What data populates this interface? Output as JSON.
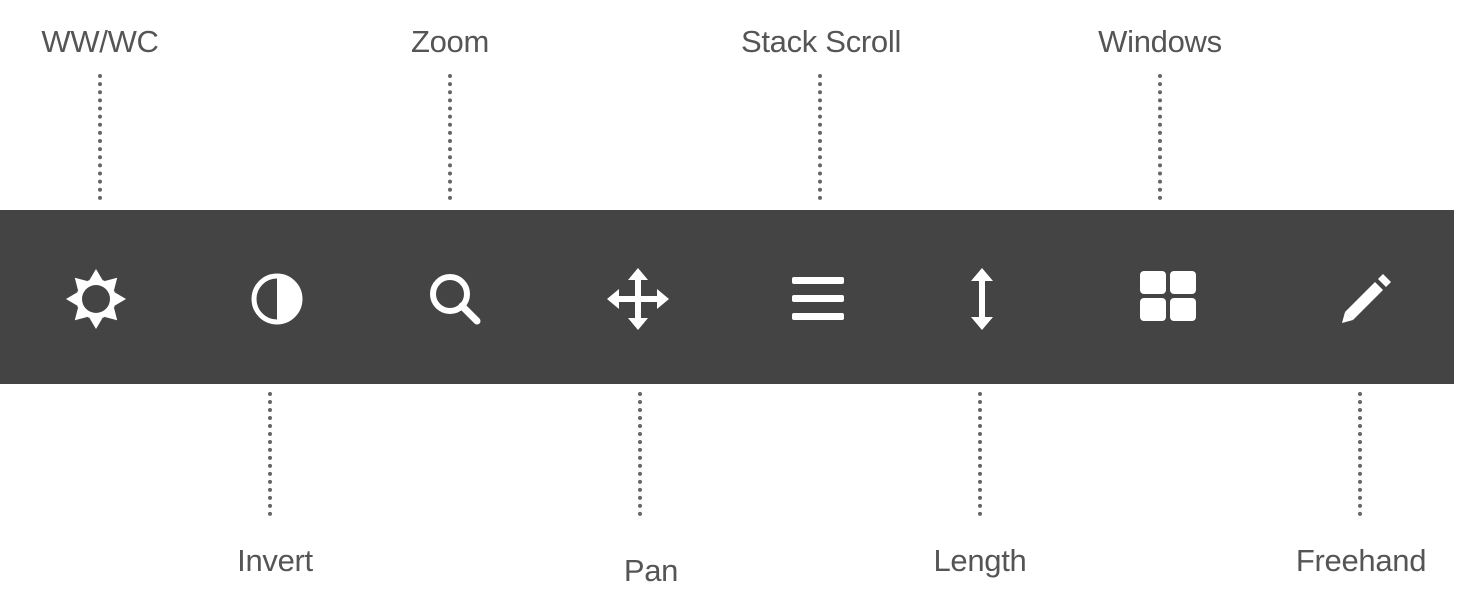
{
  "toolbar": {
    "background": "#444444",
    "icon_color": "#ffffff",
    "tools": [
      {
        "id": "wwwc",
        "label": "WW/WC",
        "icon": "sun-icon",
        "label_position": "top"
      },
      {
        "id": "invert",
        "label": "Invert",
        "icon": "half-circle-icon",
        "label_position": "bottom"
      },
      {
        "id": "zoom",
        "label": "Zoom",
        "icon": "search-icon",
        "label_position": "top"
      },
      {
        "id": "pan",
        "label": "Pan",
        "icon": "arrows-move-icon",
        "label_position": "bottom"
      },
      {
        "id": "stack-scroll",
        "label": "Stack Scroll",
        "icon": "bars-icon",
        "label_position": "top"
      },
      {
        "id": "length",
        "label": "Length",
        "icon": "vertical-arrows-icon",
        "label_position": "bottom"
      },
      {
        "id": "windows",
        "label": "Windows",
        "icon": "grid-icon",
        "label_position": "top"
      },
      {
        "id": "freehand",
        "label": "Freehand",
        "icon": "pencil-icon",
        "label_position": "bottom"
      }
    ]
  },
  "label_color": "#555555",
  "leader_style": "dotted"
}
